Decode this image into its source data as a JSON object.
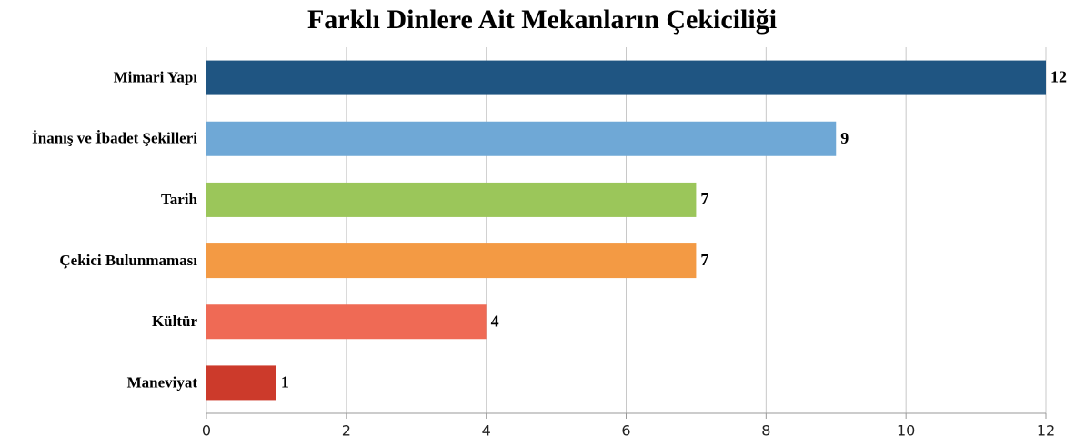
{
  "chart_data": {
    "type": "barh",
    "title": "Farklı Dinlere Ait Mekanların Çekiciliği",
    "categories": [
      "Mimari Yapı",
      "İnanış ve İbadet Şekilleri",
      "Tarih",
      "Çekici Bulunmaması",
      "Kültür",
      "Maneviyat"
    ],
    "values": [
      12,
      9,
      7,
      7,
      4,
      1
    ],
    "colors": [
      "#1f5582",
      "#6fa8d6",
      "#9bc65a",
      "#f39a44",
      "#ef6a55",
      "#cc3a2b"
    ],
    "xlim": [
      0,
      12
    ],
    "xticks": [
      0,
      2,
      4,
      6,
      8,
      10,
      12
    ],
    "grid": true
  }
}
